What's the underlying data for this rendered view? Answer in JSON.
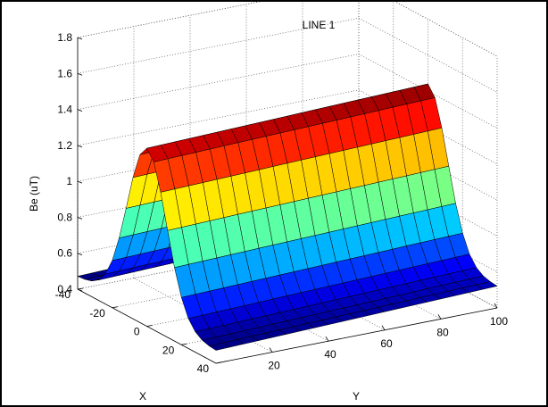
{
  "chart_data": {
    "type": "surface",
    "title": "LINE 1",
    "xlabel": "X",
    "ylabel": "Y",
    "zlabel": "Be (uT)",
    "x_range": [
      -40,
      40
    ],
    "y_range": [
      0,
      100
    ],
    "zlim": [
      0.4,
      1.8
    ],
    "x_ticks": [
      "-40",
      "-20",
      "0",
      "20",
      "40"
    ],
    "y_ticks": [
      "20",
      "40",
      "60",
      "80",
      "100"
    ],
    "z_ticks": [
      "0.4",
      "0.6",
      "0.8",
      "1",
      "1.2",
      "1.4",
      "1.6",
      "1.8"
    ],
    "grid": true,
    "colormap": "jet",
    "surface_model": {
      "description_of_values": "Be ≈ baseline + peak * exp(-(x/width)^2), slight rise toward higher y",
      "baseline_uT": 0.47,
      "peak_uT": 1.39,
      "x_width": 16,
      "y_gain_uT": 0.05
    },
    "grid_steps": {
      "x": 21,
      "y": 21
    }
  }
}
